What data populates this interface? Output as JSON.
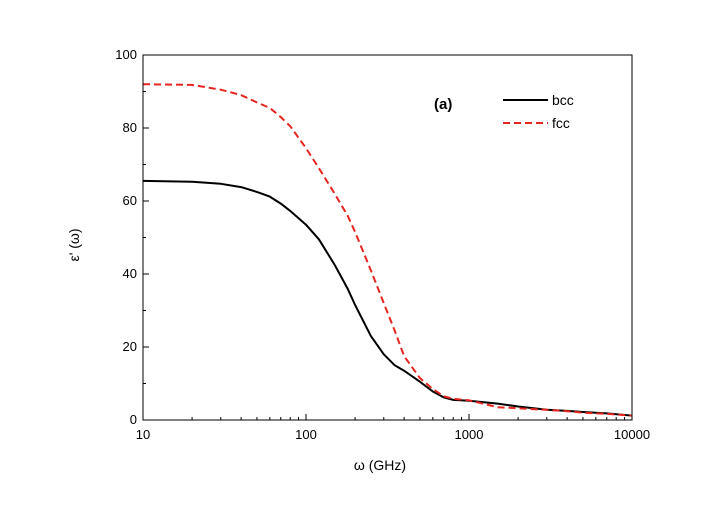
{
  "chart_data": {
    "type": "line",
    "title": "",
    "annotation": "(a)",
    "xlabel": "ω (GHz)",
    "ylabel": "ε' (ω)",
    "xscale": "log",
    "xlim": [
      10,
      10000
    ],
    "ylim": [
      0,
      100
    ],
    "x_ticks": [
      10,
      100,
      1000,
      10000
    ],
    "x_tick_labels": [
      "10",
      "100",
      "1000",
      "10000"
    ],
    "y_ticks": [
      0,
      20,
      40,
      60,
      80,
      100
    ],
    "y_tick_labels": [
      "0",
      "20",
      "40",
      "60",
      "80",
      "100"
    ],
    "grid": false,
    "legend_position": "top-right",
    "series": [
      {
        "name": "bcc",
        "color": "#000000",
        "style": "solid",
        "x": [
          10,
          20,
          30,
          40,
          50,
          60,
          70,
          80,
          100,
          120,
          150,
          180,
          200,
          250,
          300,
          350,
          400,
          500,
          600,
          700,
          800,
          1000,
          1500,
          2000,
          3000,
          4000,
          5000,
          7000,
          10000
        ],
        "y": [
          65.5,
          65.3,
          64.7,
          63.8,
          62.5,
          61.2,
          59.3,
          57.3,
          53.5,
          49.5,
          42.5,
          36,
          31.5,
          23,
          18,
          15,
          13.5,
          10.5,
          7.8,
          6.2,
          5.5,
          5.3,
          4.5,
          3.7,
          2.8,
          2.5,
          2.2,
          1.8,
          1.2
        ]
      },
      {
        "name": "fcc",
        "color": "#e8241f",
        "style": "dashed",
        "x": [
          10,
          20,
          30,
          40,
          50,
          60,
          70,
          80,
          100,
          120,
          150,
          180,
          200,
          250,
          300,
          350,
          400,
          500,
          600,
          700,
          800,
          1000,
          1500,
          2000,
          3000,
          4000,
          5000,
          7000,
          10000
        ],
        "y": [
          92,
          91.8,
          90.5,
          89,
          87,
          85.5,
          83,
          80.5,
          74.5,
          69,
          62,
          56,
          51.5,
          41,
          32,
          24.5,
          17.5,
          11.5,
          8.5,
          6.5,
          5.8,
          5.4,
          3.5,
          3.2,
          2.8,
          2.4,
          2,
          1.7,
          1.2
        ]
      }
    ]
  }
}
